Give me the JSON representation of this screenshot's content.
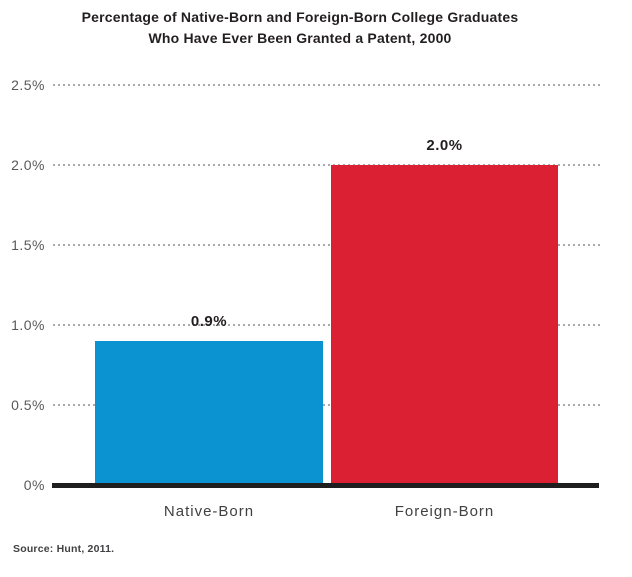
{
  "chart_data": {
    "type": "bar",
    "title": "Percentage of Native-Born and Foreign-Born College Graduates Who Have Ever Been Granted a Patent, 2000",
    "title_lines": [
      "Percentage of Native-Born and Foreign-Born College Graduates",
      "Who Have Ever Been Granted a Patent, 2000"
    ],
    "categories": [
      "Native-Born",
      "Foreign-Born"
    ],
    "values": [
      0.9,
      2.0
    ],
    "value_labels": [
      "0.9%",
      "2.0%"
    ],
    "bar_colors": [
      "#0b93d1",
      "#da2032"
    ],
    "xlabel": "",
    "ylabel": "",
    "ylim": [
      0,
      2.5
    ],
    "y_ticks": [
      {
        "value": 0,
        "label": "0%"
      },
      {
        "value": 0.5,
        "label": "0.5%"
      },
      {
        "value": 1.0,
        "label": "1.0%"
      },
      {
        "value": 1.5,
        "label": "1.5%"
      },
      {
        "value": 2.0,
        "label": "2.0%"
      },
      {
        "value": 2.5,
        "label": "2.5%"
      }
    ],
    "grid": "horizontal-dotted",
    "gridline_color": "#a8aaad",
    "axis_line_color": "#1e1e1e",
    "legend": "none"
  },
  "source": "Source: Hunt, 2011."
}
